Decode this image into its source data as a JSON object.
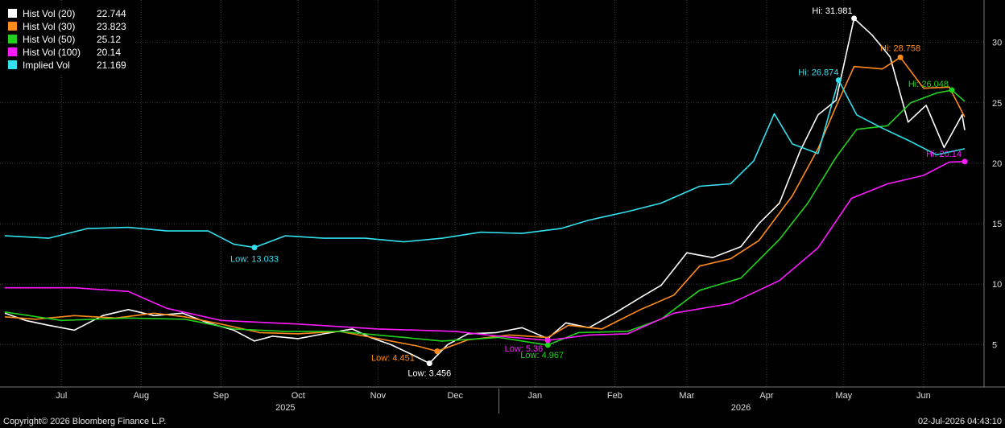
{
  "footer": {
    "copyright": "Copyright© 2026 Bloomberg Finance L.P.",
    "timestamp": "02-Jul-2026 04:43:10"
  },
  "colors": {
    "background": "#000000",
    "grid": "#3a3a3a",
    "axis_text": "#dcdcdc"
  },
  "chart_data": {
    "type": "line",
    "x_start": "2025-06-23",
    "x_end": "2026-07-01",
    "ylim": [
      1.5,
      33.5
    ],
    "y_ticks": [
      5,
      10,
      15,
      20,
      25,
      30
    ],
    "grid": true,
    "legend_position": "top-left",
    "x_month_labels": [
      {
        "label": "Jul",
        "date": "2025-07-15"
      },
      {
        "label": "Aug",
        "date": "2025-08-15"
      },
      {
        "label": "Sep",
        "date": "2025-09-15"
      },
      {
        "label": "Oct",
        "date": "2025-10-15"
      },
      {
        "label": "Nov",
        "date": "2025-11-15"
      },
      {
        "label": "Dec",
        "date": "2025-12-15"
      },
      {
        "label": "Jan",
        "date": "2026-01-15"
      },
      {
        "label": "Feb",
        "date": "2026-02-15"
      },
      {
        "label": "Mar",
        "date": "2026-03-15"
      },
      {
        "label": "Apr",
        "date": "2026-04-15"
      },
      {
        "label": "May",
        "date": "2026-05-15"
      },
      {
        "label": "Jun",
        "date": "2026-06-15"
      }
    ],
    "x_year_labels": [
      {
        "label": "2025",
        "date": "2025-10-10"
      },
      {
        "label": "2026",
        "date": "2026-04-05"
      }
    ],
    "year_divider": "2026-01-01",
    "series": [
      {
        "name": "Hist Vol (20)",
        "last": "22.744",
        "color": "#ffffff",
        "points": [
          [
            "2025-06-23",
            7.6
          ],
          [
            "2025-07-01",
            7.0
          ],
          [
            "2025-07-10",
            6.6
          ],
          [
            "2025-07-20",
            6.2
          ],
          [
            "2025-07-31",
            7.4
          ],
          [
            "2025-08-10",
            7.9
          ],
          [
            "2025-08-20",
            7.4
          ],
          [
            "2025-08-31",
            7.6
          ],
          [
            "2025-09-10",
            6.8
          ],
          [
            "2025-09-20",
            6.2
          ],
          [
            "2025-09-28",
            5.3
          ],
          [
            "2025-10-05",
            5.7
          ],
          [
            "2025-10-15",
            5.5
          ],
          [
            "2025-10-25",
            5.9
          ],
          [
            "2025-11-05",
            6.3
          ],
          [
            "2025-11-12",
            5.6
          ],
          [
            "2025-11-20",
            5.0
          ],
          [
            "2025-11-28",
            4.2
          ],
          [
            "2025-12-05",
            3.456
          ],
          [
            "2025-12-12",
            5.0
          ],
          [
            "2025-12-20",
            5.9
          ],
          [
            "2025-12-31",
            6.0
          ],
          [
            "2026-01-10",
            6.4
          ],
          [
            "2026-01-20",
            5.5
          ],
          [
            "2026-01-27",
            6.8
          ],
          [
            "2026-02-05",
            6.4
          ],
          [
            "2026-02-15",
            7.6
          ],
          [
            "2026-02-25",
            8.9
          ],
          [
            "2026-03-05",
            9.9
          ],
          [
            "2026-03-15",
            12.6
          ],
          [
            "2026-03-25",
            12.2
          ],
          [
            "2026-04-05",
            13.1
          ],
          [
            "2026-04-12",
            15.0
          ],
          [
            "2026-04-20",
            16.7
          ],
          [
            "2026-04-28",
            21.0
          ],
          [
            "2026-05-05",
            24.0
          ],
          [
            "2026-05-12",
            25.2
          ],
          [
            "2026-05-19",
            31.981
          ],
          [
            "2026-05-26",
            30.6
          ],
          [
            "2026-06-02",
            28.8
          ],
          [
            "2026-06-09",
            23.4
          ],
          [
            "2026-06-16",
            24.8
          ],
          [
            "2026-06-23",
            21.3
          ],
          [
            "2026-06-30",
            24.0
          ],
          [
            "2026-07-01",
            22.744
          ]
        ]
      },
      {
        "name": "Hist Vol (30)",
        "last": "23.823",
        "color": "#ff8c1a",
        "points": [
          [
            "2025-06-23",
            7.3
          ],
          [
            "2025-07-05",
            7.1
          ],
          [
            "2025-07-20",
            7.4
          ],
          [
            "2025-08-05",
            7.2
          ],
          [
            "2025-08-20",
            7.6
          ],
          [
            "2025-09-01",
            7.3
          ],
          [
            "2025-09-15",
            6.7
          ],
          [
            "2025-09-30",
            6.0
          ],
          [
            "2025-10-15",
            5.9
          ],
          [
            "2025-10-31",
            6.1
          ],
          [
            "2025-11-15",
            5.5
          ],
          [
            "2025-11-30",
            4.9
          ],
          [
            "2025-12-08",
            4.451
          ],
          [
            "2025-12-20",
            5.4
          ],
          [
            "2026-01-05",
            5.8
          ],
          [
            "2026-01-20",
            5.6
          ],
          [
            "2026-01-28",
            6.6
          ],
          [
            "2026-02-10",
            6.3
          ],
          [
            "2026-02-25",
            7.9
          ],
          [
            "2026-03-10",
            9.1
          ],
          [
            "2026-03-20",
            11.5
          ],
          [
            "2026-04-01",
            12.1
          ],
          [
            "2026-04-12",
            13.6
          ],
          [
            "2026-04-25",
            17.3
          ],
          [
            "2026-05-05",
            21.2
          ],
          [
            "2026-05-12",
            24.7
          ],
          [
            "2026-05-19",
            28.0
          ],
          [
            "2026-05-30",
            27.8
          ],
          [
            "2026-06-06",
            28.758
          ],
          [
            "2026-06-15",
            26.2
          ],
          [
            "2026-06-25",
            26.3
          ],
          [
            "2026-07-01",
            23.823
          ]
        ]
      },
      {
        "name": "Hist Vol (50)",
        "last": "25.12",
        "color": "#22d11e",
        "points": [
          [
            "2025-06-23",
            7.7
          ],
          [
            "2025-07-15",
            7.0
          ],
          [
            "2025-08-10",
            7.2
          ],
          [
            "2025-09-01",
            7.1
          ],
          [
            "2025-09-20",
            6.3
          ],
          [
            "2025-10-10",
            6.1
          ],
          [
            "2025-10-31",
            6.1
          ],
          [
            "2025-11-20",
            5.7
          ],
          [
            "2025-12-10",
            5.3
          ],
          [
            "2026-01-01",
            5.6
          ],
          [
            "2026-01-20",
            4.967
          ],
          [
            "2026-02-01",
            6.0
          ],
          [
            "2026-02-20",
            6.1
          ],
          [
            "2026-03-05",
            7.1
          ],
          [
            "2026-03-20",
            9.5
          ],
          [
            "2026-04-05",
            10.5
          ],
          [
            "2026-04-20",
            13.7
          ],
          [
            "2026-05-01",
            16.7
          ],
          [
            "2026-05-12",
            20.5
          ],
          [
            "2026-05-20",
            22.8
          ],
          [
            "2026-06-01",
            23.1
          ],
          [
            "2026-06-10",
            25.0
          ],
          [
            "2026-06-20",
            25.8
          ],
          [
            "2026-06-26",
            26.048
          ],
          [
            "2026-07-01",
            25.12
          ]
        ]
      },
      {
        "name": "Hist Vol (100)",
        "last": "20.14",
        "color": "#ff1aff",
        "points": [
          [
            "2025-06-23",
            9.7
          ],
          [
            "2025-07-20",
            9.7
          ],
          [
            "2025-08-10",
            9.4
          ],
          [
            "2025-08-25",
            8.0
          ],
          [
            "2025-09-15",
            7.0
          ],
          [
            "2025-10-15",
            6.7
          ],
          [
            "2025-11-15",
            6.3
          ],
          [
            "2025-12-15",
            6.1
          ],
          [
            "2026-01-01",
            5.7
          ],
          [
            "2026-01-20",
            5.36
          ],
          [
            "2026-02-05",
            5.8
          ],
          [
            "2026-02-20",
            5.9
          ],
          [
            "2026-03-10",
            7.6
          ],
          [
            "2026-04-01",
            8.4
          ],
          [
            "2026-04-20",
            10.3
          ],
          [
            "2026-05-05",
            13.0
          ],
          [
            "2026-05-18",
            17.1
          ],
          [
            "2026-06-01",
            18.3
          ],
          [
            "2026-06-15",
            19.0
          ],
          [
            "2026-06-25",
            20.1
          ],
          [
            "2026-07-01",
            20.14
          ]
        ]
      },
      {
        "name": "Implied Vol",
        "last": "21.169",
        "color": "#33e0ee",
        "points": [
          [
            "2025-06-23",
            14.0
          ],
          [
            "2025-07-10",
            13.8
          ],
          [
            "2025-07-25",
            14.6
          ],
          [
            "2025-08-10",
            14.7
          ],
          [
            "2025-08-25",
            14.4
          ],
          [
            "2025-09-10",
            14.4
          ],
          [
            "2025-09-20",
            13.3
          ],
          [
            "2025-09-28",
            13.033
          ],
          [
            "2025-10-10",
            14.0
          ],
          [
            "2025-10-25",
            13.8
          ],
          [
            "2025-11-10",
            13.8
          ],
          [
            "2025-11-25",
            13.5
          ],
          [
            "2025-12-10",
            13.8
          ],
          [
            "2025-12-25",
            14.3
          ],
          [
            "2026-01-10",
            14.2
          ],
          [
            "2026-01-25",
            14.6
          ],
          [
            "2026-02-05",
            15.3
          ],
          [
            "2026-02-20",
            16.0
          ],
          [
            "2026-03-05",
            16.7
          ],
          [
            "2026-03-20",
            18.1
          ],
          [
            "2026-04-01",
            18.3
          ],
          [
            "2026-04-10",
            20.2
          ],
          [
            "2026-04-18",
            24.1
          ],
          [
            "2026-04-25",
            21.6
          ],
          [
            "2026-05-05",
            20.8
          ],
          [
            "2026-05-13",
            26.874
          ],
          [
            "2026-05-20",
            24.0
          ],
          [
            "2026-05-30",
            22.9
          ],
          [
            "2026-06-10",
            21.8
          ],
          [
            "2026-06-20",
            20.7
          ],
          [
            "2026-07-01",
            21.2
          ]
        ]
      }
    ],
    "annotations": [
      {
        "label": "Hi: 31.981",
        "series": 0,
        "date": "2026-05-19",
        "value": 31.981,
        "anchor": "end",
        "dx": -2,
        "dy": -6
      },
      {
        "label": "Low: 3.456",
        "series": 0,
        "date": "2025-12-05",
        "value": 3.456,
        "anchor": "middle",
        "dx": 0,
        "dy": 16
      },
      {
        "label": "Hi: 28.758",
        "series": 1,
        "date": "2026-06-06",
        "value": 28.758,
        "anchor": "middle",
        "dx": 0,
        "dy": -8
      },
      {
        "label": "Low: 4.451",
        "series": 1,
        "date": "2025-12-08",
        "value": 4.451,
        "anchor": "end",
        "dx": -28,
        "dy": 12
      },
      {
        "label": "Hi: 26.048",
        "series": 2,
        "date": "2026-06-26",
        "value": 26.048,
        "anchor": "end",
        "dx": -4,
        "dy": -4
      },
      {
        "label": "Low: 4.967",
        "series": 2,
        "date": "2026-01-20",
        "value": 4.967,
        "anchor": "start",
        "dx": -34,
        "dy": 16
      },
      {
        "label": "Hi: 20.14",
        "series": 3,
        "date": "2026-07-01",
        "value": 20.14,
        "anchor": "end",
        "dx": -4,
        "dy": -6
      },
      {
        "label": "Low: 5.36",
        "series": 3,
        "date": "2026-01-20",
        "value": 5.36,
        "anchor": "end",
        "dx": -6,
        "dy": 14
      },
      {
        "label": "Hi: 26.874",
        "series": 4,
        "date": "2026-05-13",
        "value": 26.874,
        "anchor": "end",
        "dx": 0,
        "dy": -6
      },
      {
        "label": "Low: 13.033",
        "series": 4,
        "date": "2025-09-28",
        "value": 13.033,
        "anchor": "middle",
        "dx": 0,
        "dy": 18
      }
    ]
  }
}
